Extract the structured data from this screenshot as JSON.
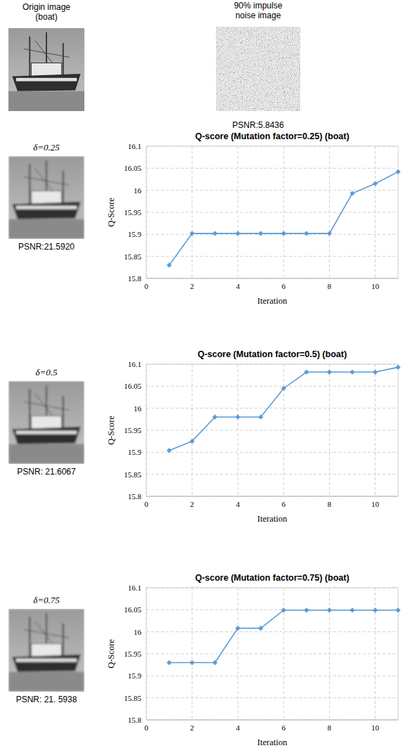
{
  "figure": {
    "original": {
      "caption": [
        "Origin image",
        "(boat)"
      ]
    },
    "noisy": {
      "caption": [
        "90% impulse",
        "noise image"
      ],
      "psnr": "PSNR:5.8436"
    },
    "results": [
      {
        "label": "δ=0.25",
        "psnr": "PSNR:21.5920"
      },
      {
        "label": "δ=0.5",
        "psnr": "PSNR: 21.6067"
      },
      {
        "label": "δ=0.75",
        "psnr": "PSNR: 21. 5938"
      }
    ]
  },
  "chart_data": [
    {
      "type": "line",
      "title": "Q-score (Mutation factor=0.25) (boat)",
      "x_label": "Iteration",
      "y_label": "Q-Score",
      "x": [
        1,
        2,
        3,
        4,
        5,
        6,
        7,
        8,
        9,
        10,
        11
      ],
      "values": [
        15.83,
        15.902,
        15.902,
        15.902,
        15.902,
        15.902,
        15.902,
        15.902,
        15.993,
        16.015,
        16.042
      ],
      "color": "#5b9bd5",
      "marker": "diamond",
      "grid": true,
      "xlim": [
        0,
        11
      ],
      "xticks": [
        0,
        2,
        4,
        6,
        8,
        10
      ],
      "ylim": [
        15.8,
        16.1
      ],
      "yticks": [
        15.8,
        15.85,
        15.9,
        15.95,
        16,
        16.05,
        16.1
      ]
    },
    {
      "type": "line",
      "title": "Q-score (Mutation factor=0.5) (boat)",
      "x_label": "Iteration",
      "y_label": "Q-Score",
      "x": [
        1,
        2,
        3,
        4,
        5,
        6,
        7,
        8,
        9,
        10,
        11
      ],
      "values": [
        15.904,
        15.925,
        15.98,
        15.98,
        15.98,
        16.045,
        16.082,
        16.082,
        16.082,
        16.082,
        16.093
      ],
      "color": "#5b9bd5",
      "marker": "diamond",
      "grid": true,
      "xlim": [
        0,
        11
      ],
      "xticks": [
        0,
        2,
        4,
        6,
        8,
        10
      ],
      "ylim": [
        15.8,
        16.1
      ],
      "yticks": [
        15.8,
        15.85,
        15.9,
        15.95,
        16,
        16.05,
        16.1
      ]
    },
    {
      "type": "line",
      "title": "Q-score (Mutation factor=0.75) (boat)",
      "x_label": "Iteration",
      "y_label": "Q-Score",
      "x": [
        1,
        2,
        3,
        4,
        5,
        6,
        7,
        8,
        9,
        10,
        11
      ],
      "values": [
        15.93,
        15.93,
        15.93,
        16.008,
        16.008,
        16.049,
        16.049,
        16.049,
        16.049,
        16.049,
        16.049
      ],
      "color": "#5b9bd5",
      "marker": "diamond",
      "grid": true,
      "xlim": [
        0,
        11
      ],
      "xticks": [
        0,
        2,
        4,
        6,
        8,
        10
      ],
      "ylim": [
        15.8,
        16.1
      ],
      "yticks": [
        15.8,
        15.85,
        15.9,
        15.95,
        16,
        16.05,
        16.1
      ]
    }
  ]
}
